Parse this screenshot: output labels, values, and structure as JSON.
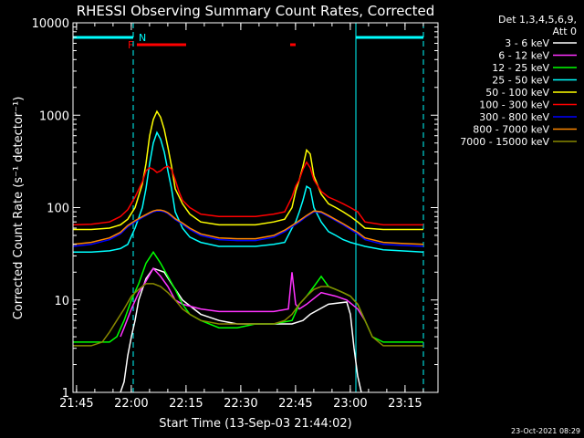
{
  "chart_data": {
    "type": "line",
    "title": "RHESSI Observing Summary Count Rates, Corrected",
    "xlabel": "Start Time (13-Sep-03 21:44:02)",
    "ylabel": "Corrected Count Rate (s⁻¹ detector⁻¹)",
    "x_unit": "minutes after 21:44:02",
    "xlim": [
      0,
      100
    ],
    "ylim": [
      1,
      10000
    ],
    "yscale": "log",
    "x_ticks": [
      {
        "x": 0.97,
        "label": "21:45"
      },
      {
        "x": 15.97,
        "label": "22:00"
      },
      {
        "x": 30.97,
        "label": "22:15"
      },
      {
        "x": 45.97,
        "label": "22:30"
      },
      {
        "x": 60.97,
        "label": "22:45"
      },
      {
        "x": 75.97,
        "label": "23:00"
      },
      {
        "x": 90.97,
        "label": "23:15"
      }
    ],
    "y_ticks": [
      {
        "y": 1,
        "label": "1"
      },
      {
        "y": 10,
        "label": "10"
      },
      {
        "y": 100,
        "label": "100"
      },
      {
        "y": 1000,
        "label": "1000"
      },
      {
        "y": 10000,
        "label": "10000"
      }
    ],
    "legend_title": [
      "Det 1,3,4,5,6,9,",
      "Att 0"
    ],
    "series": [
      {
        "name": "3 - 6 keV",
        "color": "#ffffff",
        "x": [
          13,
          14,
          15,
          16,
          17,
          18,
          20,
          22,
          25,
          27,
          30,
          35,
          40,
          45,
          50,
          55,
          58,
          60,
          63,
          65,
          70,
          75,
          76,
          77,
          78,
          79
        ],
        "y": [
          1,
          1.3,
          2.5,
          4,
          6,
          10,
          17,
          22,
          20,
          15,
          10,
          7,
          6,
          5.5,
          5.5,
          5.5,
          5.5,
          5.5,
          6,
          7,
          9,
          9.5,
          7,
          3,
          1.5,
          1
        ]
      },
      {
        "name": "6 - 12 keV",
        "color": "#ff33ff",
        "x": [
          13,
          14,
          16,
          18,
          20,
          22,
          24,
          26,
          28,
          30,
          35,
          40,
          45,
          50,
          55,
          59,
          60,
          61,
          62,
          64,
          68,
          72,
          75,
          78,
          80
        ],
        "y": [
          4,
          5,
          8,
          12,
          16,
          22,
          18,
          14,
          10,
          9,
          8,
          7.5,
          7.5,
          7.5,
          7.5,
          8,
          20,
          9,
          8,
          9,
          12,
          11,
          10,
          8,
          6
        ]
      },
      {
        "name": "12 - 25 keV",
        "color": "#00ff00",
        "x": [
          0,
          5,
          10,
          12,
          14,
          16,
          18,
          20,
          22,
          24,
          26,
          28,
          30,
          32,
          35,
          40,
          45,
          50,
          55,
          60,
          62,
          64,
          66,
          68,
          70,
          72,
          74,
          76,
          78,
          80,
          82,
          85,
          88,
          92,
          96
        ],
        "y": [
          3.5,
          3.5,
          3.5,
          4,
          6,
          10,
          15,
          25,
          33,
          25,
          18,
          13,
          9,
          7,
          6,
          5,
          5,
          5.5,
          5.5,
          6,
          9,
          11,
          14,
          18,
          14,
          13,
          12,
          11,
          9,
          6,
          4,
          3.5,
          3.5,
          3.5,
          3.5
        ]
      },
      {
        "name": "25 - 50 keV",
        "color": "#00ffff",
        "x": [
          0,
          5,
          10,
          13,
          15,
          17,
          19,
          20,
          21,
          22,
          23,
          24,
          25,
          26,
          27,
          28,
          30,
          32,
          35,
          40,
          45,
          50,
          55,
          58,
          60,
          61,
          62,
          63,
          64,
          65,
          66,
          68,
          70,
          72,
          74,
          76,
          78,
          80,
          85,
          90,
          96
        ],
        "y": [
          33,
          33,
          34,
          36,
          40,
          60,
          100,
          160,
          300,
          500,
          650,
          550,
          400,
          250,
          160,
          90,
          60,
          48,
          42,
          38,
          38,
          38,
          40,
          42,
          60,
          70,
          90,
          120,
          170,
          160,
          100,
          70,
          55,
          50,
          45,
          42,
          40,
          38,
          35,
          34,
          33
        ]
      },
      {
        "name": "50 - 100 keV",
        "color": "#ffff00",
        "x": [
          0,
          5,
          10,
          13,
          15,
          17,
          19,
          20,
          21,
          22,
          23,
          24,
          25,
          26,
          27,
          28,
          30,
          32,
          35,
          40,
          45,
          50,
          55,
          58,
          60,
          61,
          62,
          63,
          64,
          65,
          66,
          68,
          70,
          72,
          74,
          76,
          78,
          80,
          85,
          90,
          96
        ],
        "y": [
          58,
          58,
          60,
          65,
          75,
          100,
          180,
          300,
          600,
          900,
          1100,
          950,
          700,
          450,
          280,
          160,
          110,
          85,
          70,
          65,
          65,
          65,
          70,
          75,
          100,
          150,
          200,
          280,
          420,
          380,
          220,
          140,
          110,
          100,
          90,
          80,
          70,
          60,
          58,
          58,
          58
        ]
      },
      {
        "name": "100 - 300 keV",
        "color": "#ff0000",
        "x": [
          0,
          5,
          10,
          13,
          15,
          17,
          19,
          20,
          21,
          22,
          23,
          24,
          25,
          26,
          27,
          28,
          29,
          30,
          32,
          35,
          40,
          45,
          50,
          55,
          58,
          60,
          61,
          62,
          63,
          64,
          65,
          66,
          68,
          70,
          72,
          74,
          76,
          78,
          80,
          85,
          90,
          96
        ],
        "y": [
          65,
          66,
          70,
          80,
          95,
          130,
          190,
          250,
          270,
          260,
          240,
          250,
          270,
          280,
          260,
          200,
          150,
          120,
          100,
          85,
          80,
          80,
          80,
          85,
          90,
          130,
          170,
          200,
          260,
          310,
          270,
          200,
          150,
          130,
          120,
          110,
          100,
          90,
          70,
          65,
          65,
          65
        ]
      },
      {
        "name": "300 - 800 keV",
        "color": "#0000ff",
        "x": [
          0,
          5,
          10,
          13,
          15,
          17,
          19,
          20,
          21,
          22,
          23,
          24,
          25,
          26,
          27,
          28,
          30,
          32,
          35,
          40,
          45,
          50,
          55,
          58,
          60,
          62,
          64,
          66,
          68,
          70,
          72,
          74,
          76,
          78,
          80,
          85,
          90,
          96
        ],
        "y": [
          38,
          40,
          45,
          52,
          62,
          70,
          78,
          82,
          86,
          90,
          92,
          92,
          90,
          86,
          80,
          74,
          66,
          58,
          50,
          45,
          44,
          44,
          48,
          55,
          62,
          70,
          80,
          90,
          88,
          80,
          72,
          65,
          58,
          52,
          45,
          40,
          39,
          38
        ]
      },
      {
        "name": "800 - 7000 keV",
        "color": "#ff8800",
        "x": [
          0,
          5,
          10,
          13,
          15,
          17,
          19,
          20,
          21,
          22,
          23,
          24,
          25,
          26,
          27,
          28,
          30,
          32,
          35,
          40,
          45,
          50,
          55,
          58,
          60,
          62,
          64,
          66,
          68,
          70,
          72,
          74,
          76,
          78,
          80,
          85,
          90,
          96
        ],
        "y": [
          40,
          42,
          47,
          54,
          64,
          72,
          80,
          84,
          88,
          92,
          94,
          94,
          92,
          88,
          82,
          76,
          68,
          60,
          52,
          47,
          46,
          46,
          50,
          57,
          64,
          72,
          82,
          92,
          90,
          82,
          74,
          67,
          60,
          54,
          47,
          42,
          41,
          40
        ]
      },
      {
        "name": "7000 - 15000 keV",
        "color": "#888800",
        "x": [
          0,
          5,
          8,
          10,
          12,
          14,
          16,
          18,
          20,
          22,
          24,
          26,
          28,
          30,
          32,
          35,
          40,
          45,
          50,
          55,
          58,
          60,
          62,
          64,
          66,
          68,
          70,
          72,
          74,
          76,
          78,
          80,
          82,
          85,
          90,
          96
        ],
        "y": [
          3.2,
          3.2,
          3.5,
          4.5,
          6,
          8,
          11,
          13,
          15,
          15,
          14,
          12,
          10,
          8,
          7,
          6,
          5.5,
          5.5,
          5.5,
          5.5,
          6,
          7,
          9,
          11,
          13,
          14,
          14,
          13,
          12,
          11,
          9,
          6,
          4,
          3.2,
          3.2,
          3.2
        ]
      }
    ],
    "annotations": [
      {
        "label": "N",
        "kind": "night",
        "x_start": 0,
        "x_end": 16.5,
        "color": "#00ffff"
      },
      {
        "label": "",
        "kind": "night",
        "x_start": 77.5,
        "x_end": 96,
        "color": "#00ffff"
      },
      {
        "label": "F",
        "kind": "flare",
        "x_start": 17.5,
        "x_end": 31,
        "color": "#ff0000"
      },
      {
        "label": "",
        "kind": "flare",
        "x_start": 59.5,
        "x_end": 61,
        "color": "#ff0000"
      }
    ],
    "vertical_markers": [
      {
        "x": 0,
        "style": "solid",
        "color": "#00ffff"
      },
      {
        "x": 16.5,
        "style": "dashed",
        "color": "#00ffff"
      },
      {
        "x": 77.5,
        "style": "solid",
        "color": "#00ffff"
      },
      {
        "x": 96,
        "style": "dashed",
        "color": "#00ffff"
      }
    ],
    "footer": "23-Oct-2021 08:29"
  }
}
